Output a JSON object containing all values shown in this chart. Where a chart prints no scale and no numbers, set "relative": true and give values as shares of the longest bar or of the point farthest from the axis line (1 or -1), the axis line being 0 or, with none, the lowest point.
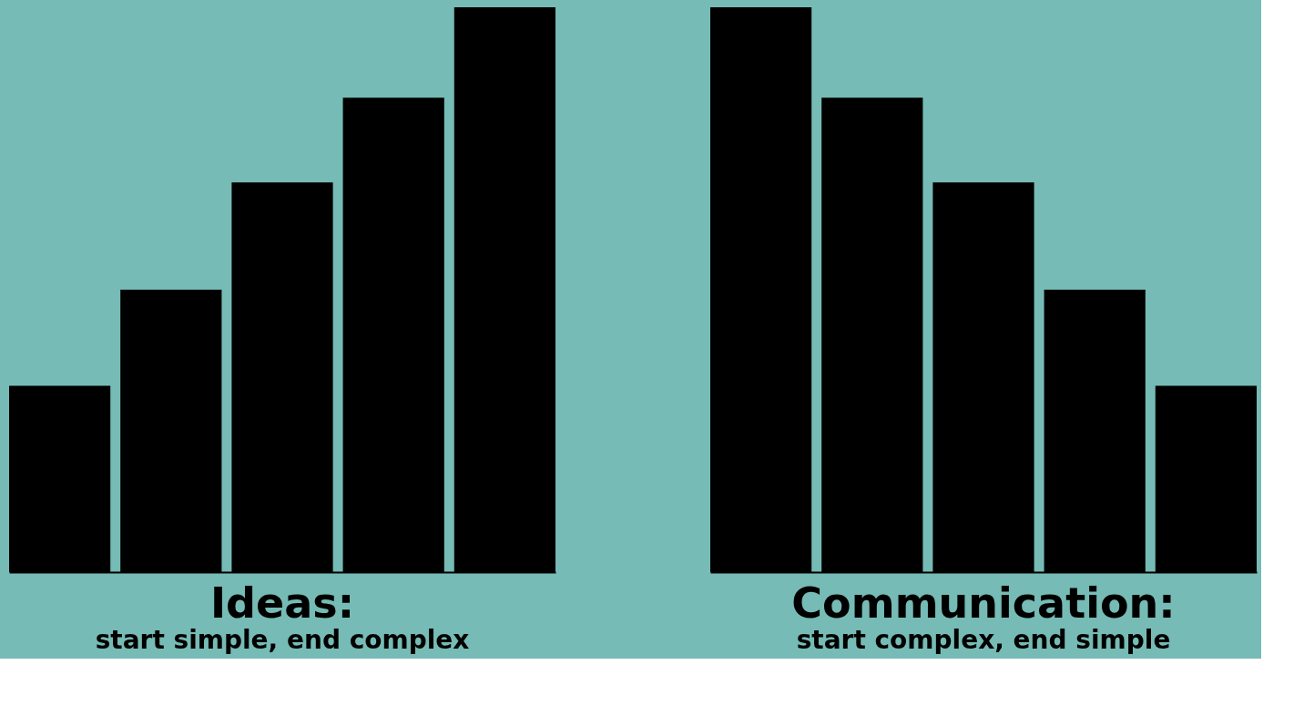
{
  "chart_data": [
    {
      "type": "bar",
      "relative": true,
      "title": "Ideas:",
      "subtitle": "start simple, end complex",
      "categories": [
        null,
        null,
        null,
        null,
        null
      ],
      "values": [
        0.33,
        0.5,
        0.69,
        0.84,
        1.0
      ],
      "color": "#000000"
    },
    {
      "type": "bar",
      "relative": true,
      "title": "Communication:",
      "subtitle": "start complex, end simple",
      "categories": [
        null,
        null,
        null,
        null,
        null
      ],
      "values": [
        1.0,
        0.84,
        0.69,
        0.5,
        0.33
      ],
      "color": "#000000"
    }
  ]
}
